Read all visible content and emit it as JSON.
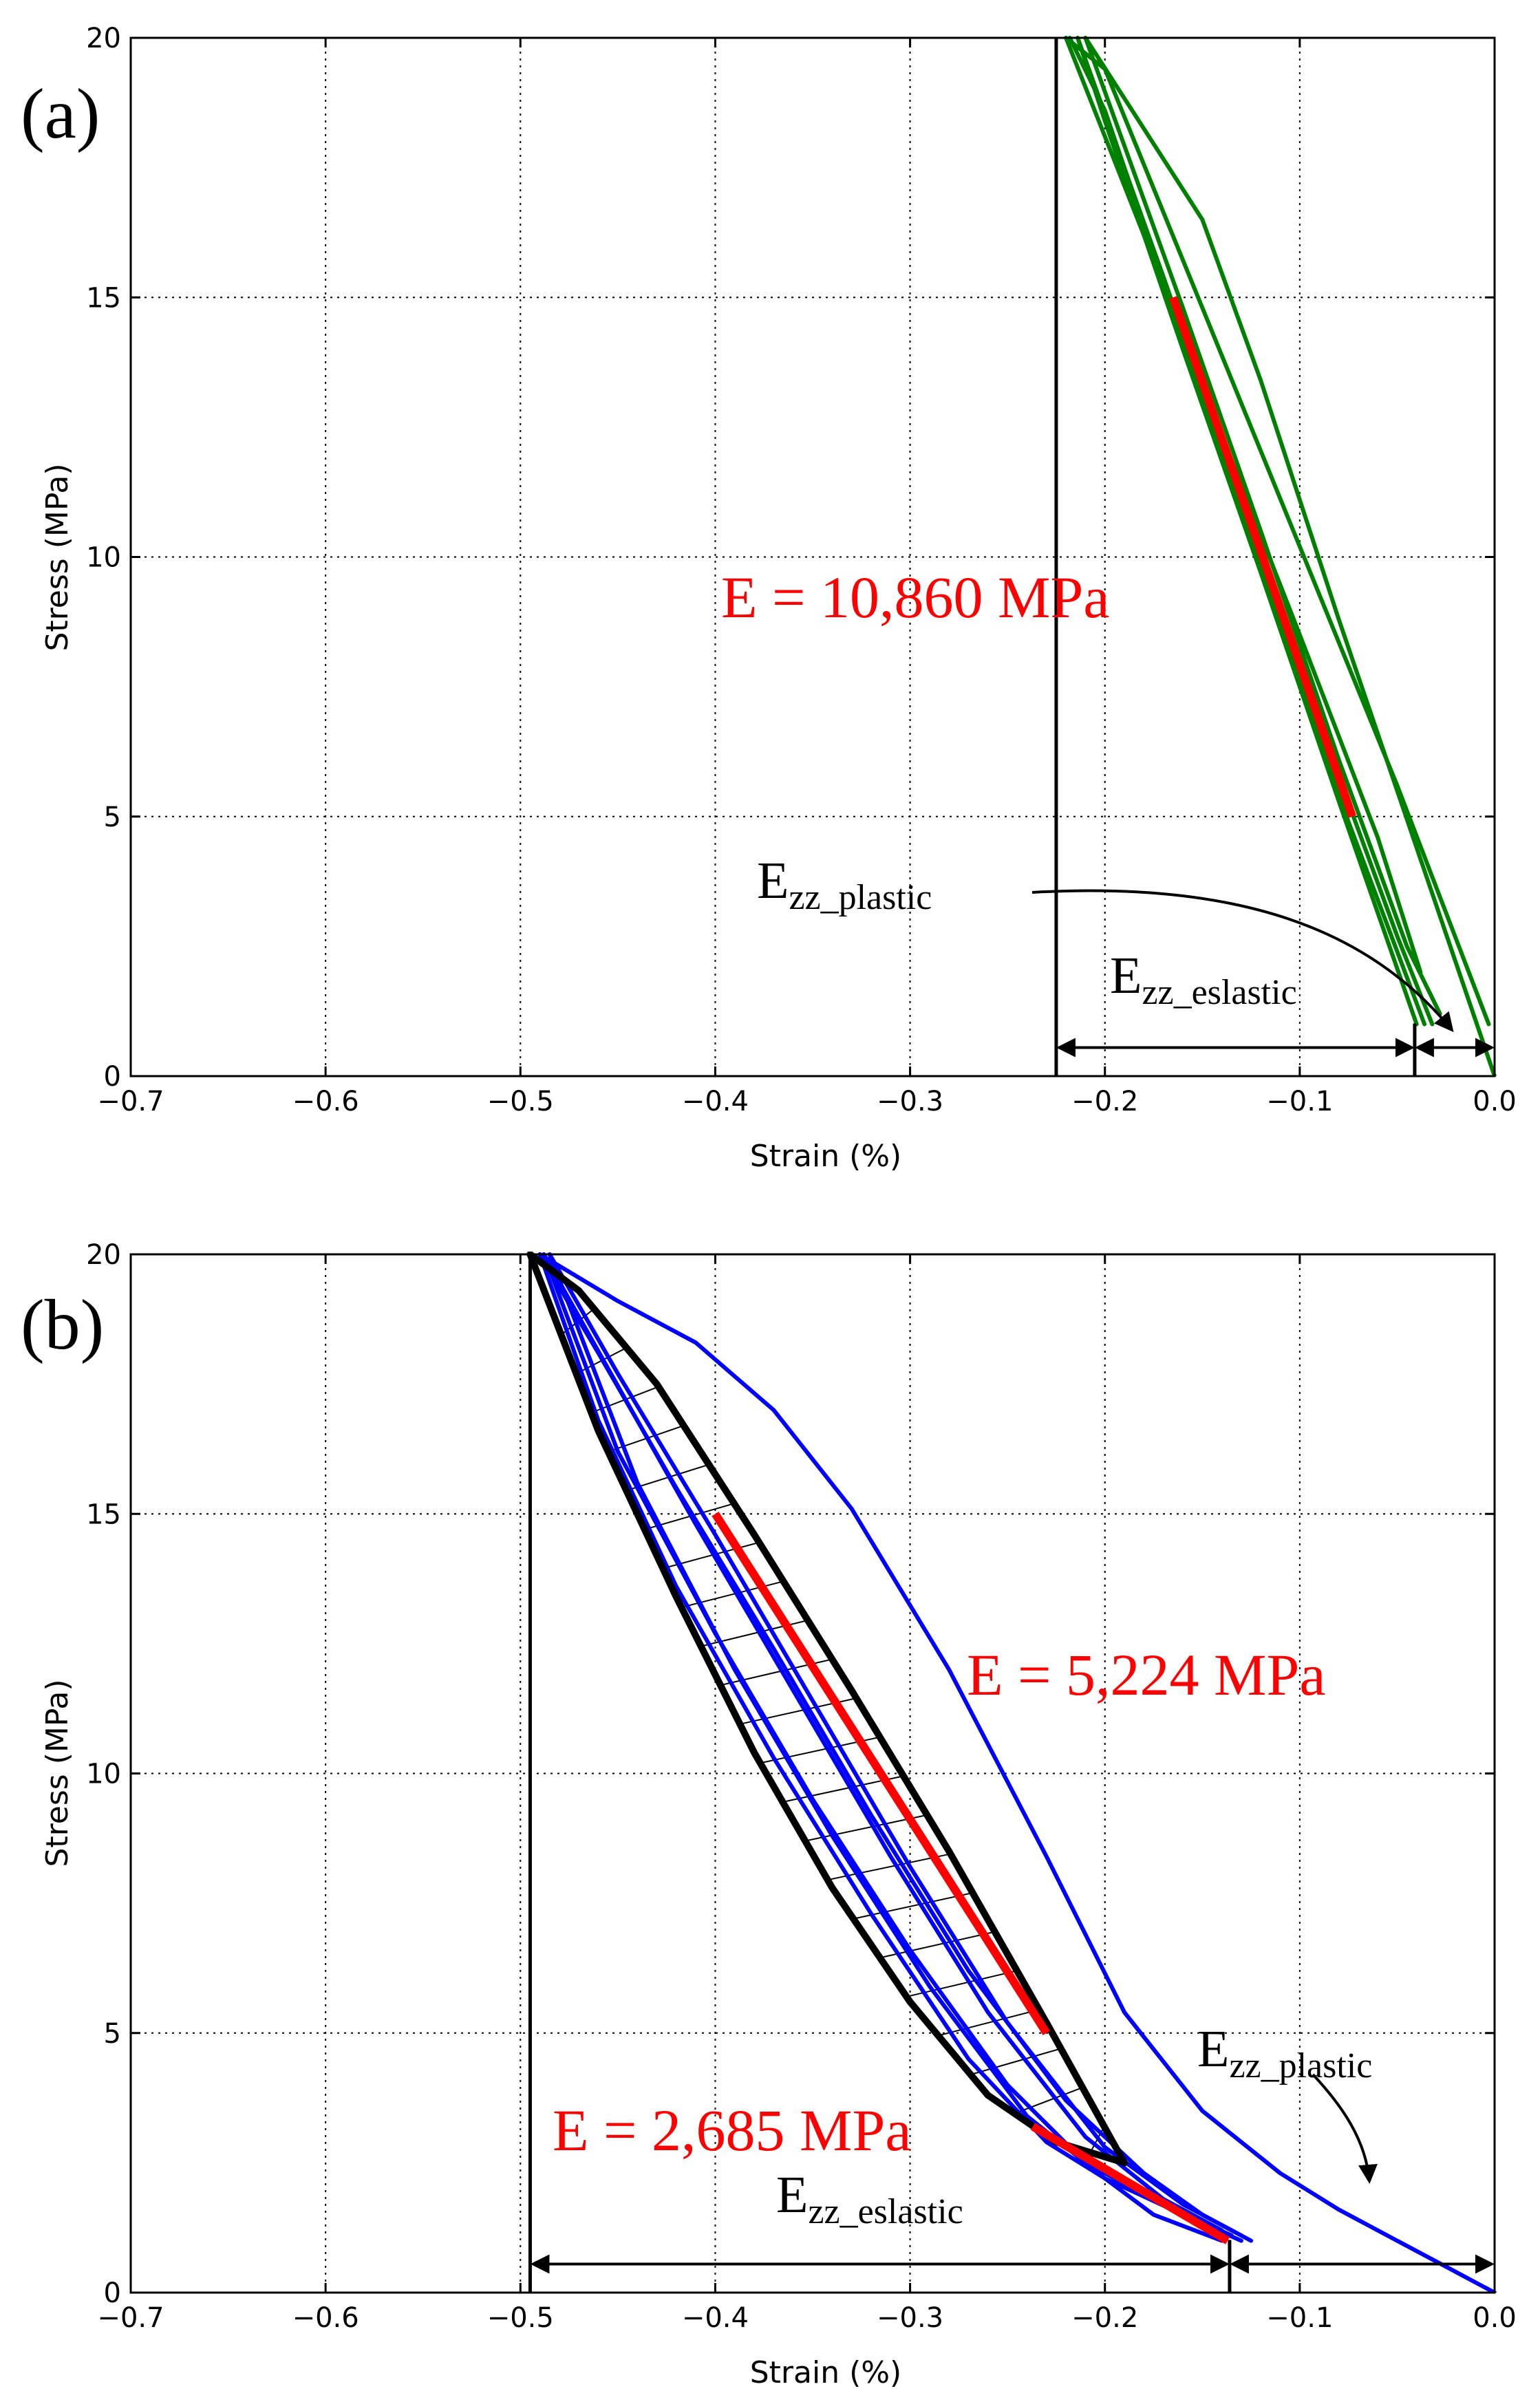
{
  "chart_data": [
    {
      "type": "line",
      "panel_label": "(a)",
      "xlabel": "Strain (%)",
      "ylabel": "Stress (MPa)",
      "xlim": [
        -0.7,
        0.0
      ],
      "ylim": [
        0,
        20
      ],
      "xticks": [
        -0.7,
        -0.6,
        -0.5,
        -0.4,
        -0.3,
        -0.2,
        -0.1,
        0.0
      ],
      "xtick_labels": [
        "−0.7",
        "−0.6",
        "−0.5",
        "−0.4",
        "−0.3",
        "−0.2",
        "−0.1",
        "0.0"
      ],
      "yticks": [
        0,
        5,
        10,
        15,
        20
      ],
      "ytick_labels": [
        "0",
        "5",
        "10",
        "15",
        "20"
      ],
      "grid": true,
      "series": [
        {
          "name": "loop 1 loading",
          "color": "#008000",
          "x": [
            -0.003,
            -0.05,
            -0.1,
            -0.15,
            -0.2,
            -0.22
          ],
          "y": [
            1.0,
            5.6,
            10.2,
            14.8,
            19.4,
            20
          ]
        },
        {
          "name": "loop 1 unloading",
          "color": "#008000",
          "x": [
            -0.22,
            -0.18,
            -0.15,
            -0.1,
            -0.06,
            -0.038
          ],
          "y": [
            20,
            16.2,
            13.3,
            8.5,
            4.6,
            2.0
          ]
        },
        {
          "name": "loop 2 loading",
          "color": "#008000",
          "x": [
            -0.04,
            -0.08,
            -0.12,
            -0.16,
            -0.2,
            -0.214
          ],
          "y": [
            1.0,
            5.3,
            9.7,
            14.0,
            18.4,
            20
          ]
        },
        {
          "name": "loop 2 unloading",
          "color": "#008000",
          "x": [
            -0.214,
            -0.17,
            -0.13,
            -0.09,
            -0.05,
            -0.032
          ],
          "y": [
            20,
            15.4,
            11.1,
            6.8,
            2.7,
            1.0
          ]
        },
        {
          "name": "loop 3 loading",
          "color": "#008000",
          "x": [
            -0.036,
            -0.08,
            -0.12,
            -0.16,
            -0.2,
            -0.218
          ],
          "y": [
            1.0,
            5.4,
            9.8,
            14.2,
            18.6,
            20
          ]
        },
        {
          "name": "loop 3 unloading",
          "color": "#008000",
          "x": [
            -0.21,
            -0.16,
            -0.12,
            -0.08,
            -0.045,
            -0.028
          ],
          "y": [
            20,
            14.8,
            10.5,
            6.1,
            2.5,
            1.2
          ]
        },
        {
          "name": "first loading",
          "color": "#008000",
          "x": [
            0.0,
            -0.04,
            -0.08,
            -0.12,
            -0.15,
            -0.21
          ],
          "y": [
            0,
            4.4,
            8.8,
            13.4,
            16.5,
            20
          ]
        }
      ],
      "fit_lines": [
        {
          "name": "modulus fit",
          "color": "#ff0000",
          "x": [
            -0.165,
            -0.073
          ],
          "y": [
            15.0,
            5.0
          ]
        }
      ],
      "reference_lines": [
        {
          "name": "peak strain marker",
          "orientation": "vertical",
          "x": -0.225
        }
      ],
      "annotations": [
        {
          "name": "modulus",
          "text": "E = 10,860 MPa",
          "color": "#ff0000"
        },
        {
          "name": "plastic strain label",
          "base": "E",
          "sub": "zz_plastic"
        },
        {
          "name": "elastic strain label",
          "base": "E",
          "sub": "zz_eslastic"
        }
      ],
      "dimension_arrows": [
        {
          "name": "elastic strain span",
          "from": -0.225,
          "to": -0.041,
          "y": 0.55
        },
        {
          "name": "plastic strain span",
          "from": -0.041,
          "to": 0.0,
          "y": 0.55
        }
      ]
    },
    {
      "type": "line",
      "panel_label": "(b)",
      "xlabel": "Strain (%)",
      "ylabel": "Stress (MPa)",
      "xlim": [
        -0.7,
        0.0
      ],
      "ylim": [
        0,
        20
      ],
      "xticks": [
        -0.7,
        -0.6,
        -0.5,
        -0.4,
        -0.3,
        -0.2,
        -0.1,
        0.0
      ],
      "xtick_labels": [
        "−0.7",
        "−0.6",
        "−0.5",
        "−0.4",
        "−0.3",
        "−0.2",
        "−0.1",
        "0.0"
      ],
      "yticks": [
        0,
        5,
        10,
        15,
        20
      ],
      "ytick_labels": [
        "0",
        "5",
        "10",
        "15",
        "20"
      ],
      "grid": true,
      "series": [
        {
          "name": "first loading",
          "color": "#0000ff",
          "x": [
            0.0,
            -0.02,
            -0.05,
            -0.08,
            -0.11,
            -0.15,
            -0.19,
            -0.23,
            -0.28,
            -0.33,
            -0.37,
            -0.41,
            -0.45,
            -0.49
          ],
          "y": [
            0,
            0.4,
            1.0,
            1.6,
            2.3,
            3.5,
            5.4,
            8.4,
            12.0,
            15.1,
            17.0,
            18.3,
            19.1,
            20
          ]
        },
        {
          "name": "loop 1 loading",
          "color": "#0000ff",
          "x": [
            -0.125,
            -0.15,
            -0.18,
            -0.22,
            -0.27,
            -0.32,
            -0.37,
            -0.42,
            -0.46,
            -0.49
          ],
          "y": [
            1.0,
            1.5,
            2.3,
            3.7,
            6.2,
            9.2,
            12.4,
            15.5,
            18.1,
            20
          ]
        },
        {
          "name": "loop 1 unloading",
          "color": "#0000ff",
          "x": [
            -0.49,
            -0.46,
            -0.42,
            -0.37,
            -0.32,
            -0.27,
            -0.23,
            -0.2,
            -0.175,
            -0.14
          ],
          "y": [
            20,
            16.8,
            13.6,
            10.3,
            7.3,
            4.5,
            2.9,
            2.2,
            1.5,
            1.0
          ]
        },
        {
          "name": "loop 2 loading",
          "color": "#0000ff",
          "x": [
            -0.14,
            -0.17,
            -0.21,
            -0.26,
            -0.31,
            -0.36,
            -0.41,
            -0.455,
            -0.488
          ],
          "y": [
            1.2,
            1.8,
            3.0,
            5.4,
            8.4,
            11.6,
            14.8,
            17.8,
            20
          ]
        },
        {
          "name": "loop 2 unloading",
          "color": "#0000ff",
          "x": [
            -0.488,
            -0.45,
            -0.4,
            -0.35,
            -0.3,
            -0.25,
            -0.21,
            -0.17,
            -0.135
          ],
          "y": [
            20,
            16.2,
            12.7,
            9.5,
            6.6,
            4.0,
            2.5,
            1.7,
            1.1
          ]
        },
        {
          "name": "loop 3 loading",
          "color": "#0000ff",
          "x": [
            -0.13,
            -0.16,
            -0.2,
            -0.25,
            -0.3,
            -0.35,
            -0.4,
            -0.45,
            -0.485
          ],
          "y": [
            1.1,
            1.7,
            2.8,
            5.2,
            8.2,
            11.4,
            14.6,
            17.7,
            20
          ]
        },
        {
          "name": "loop 3 unloading",
          "color": "#0000ff",
          "x": [
            -0.485,
            -0.44,
            -0.39,
            -0.34,
            -0.29,
            -0.24,
            -0.2,
            -0.16,
            -0.13
          ],
          "y": [
            20,
            15.6,
            12.0,
            8.8,
            5.9,
            3.4,
            2.2,
            1.5,
            1.0
          ]
        },
        {
          "name": "envelope loading",
          "color": "#000000",
          "x": [
            -0.19,
            -0.23,
            -0.28,
            -0.33,
            -0.38,
            -0.43,
            -0.47,
            -0.495
          ],
          "y": [
            2.5,
            5.2,
            8.5,
            11.6,
            14.6,
            17.5,
            19.3,
            20
          ]
        },
        {
          "name": "envelope unloading",
          "color": "#000000",
          "x": [
            -0.495,
            -0.46,
            -0.42,
            -0.38,
            -0.34,
            -0.3,
            -0.26,
            -0.225,
            -0.19
          ],
          "y": [
            20,
            16.6,
            13.4,
            10.4,
            7.8,
            5.6,
            3.8,
            2.9,
            2.5
          ]
        }
      ],
      "fit_lines": [
        {
          "name": "loading modulus fit",
          "color": "#ff0000",
          "x": [
            -0.4,
            -0.23
          ],
          "y": [
            15.0,
            5.0
          ]
        },
        {
          "name": "unloading modulus fit",
          "color": "#ff0000",
          "x": [
            -0.237,
            -0.137
          ],
          "y": [
            3.2,
            1.0
          ]
        }
      ],
      "reference_lines": [
        {
          "name": "peak strain marker",
          "orientation": "vertical",
          "x": -0.495
        }
      ],
      "annotations": [
        {
          "name": "loading modulus",
          "text": "E = 5,224 MPa",
          "color": "#ff0000"
        },
        {
          "name": "unloading modulus",
          "text": "E = 2,685 MPa",
          "color": "#ff0000"
        },
        {
          "name": "plastic strain label",
          "base": "E",
          "sub": "zz_plastic"
        },
        {
          "name": "elastic strain label",
          "base": "E",
          "sub": "zz_eslastic"
        }
      ],
      "dimension_arrows": [
        {
          "name": "elastic strain span",
          "from": -0.495,
          "to": -0.136,
          "y": 0.55
        },
        {
          "name": "plastic strain span",
          "from": -0.136,
          "to": 0.0,
          "y": 0.55
        }
      ]
    }
  ]
}
